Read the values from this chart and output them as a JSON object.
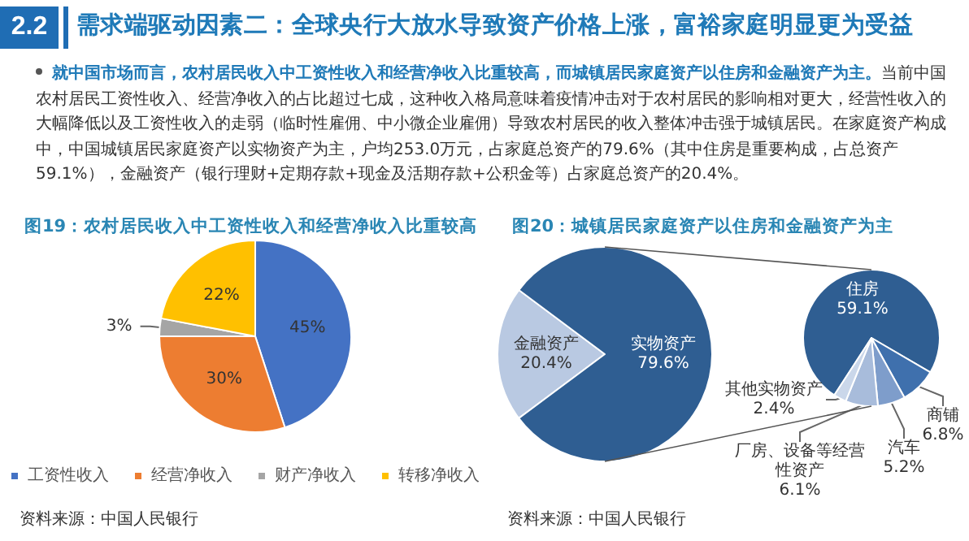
{
  "chart_data": [
    {
      "type": "other",
      "title": "需求端驱动因素二：全球央行大放水导致资产价格上涨，富裕家庭明显更为受益",
      "annotations": [
        "2.2",
        "就中国市场而言，农村居民收入中工资性收入和经营净收入比重较高，而城镇居民家庭资产以住房和金融资产为主。",
        "当前中国农村居民工资性收入、经营净收入的占比超过七成，这种收入格局意味着疫情冲击对于农村居民的影响相对更大，经营性收入的大幅降低以及工资性收入的走弱（临时性雇佣、中小微企业雇佣）导致农村居民的收入整体冲击强于城镇居民。在家庭资产构成中，中国城镇居民家庭资产以实物资产为主，户均253.0万元，占家庭总资产的79.6%（其中住房是重要构成，占总资产59.1%），金融资产（银行理财+定期存款+现金及活期存款+公积金等）占家庭总资产的20.4%。"
      ]
    },
    {
      "type": "pie",
      "title": "图19：农村居民收入中工资性收入和经营净收入比重较高",
      "categories": [
        "工资性收入",
        "经营净收入",
        "财产净收入",
        "转移净收入"
      ],
      "values": [
        45,
        30,
        3,
        22
      ],
      "colors": [
        "#4472c4",
        "#ed7d31",
        "#a5a5a5",
        "#ffc000"
      ],
      "value_labels": [
        "45%",
        "30%",
        "3%",
        "22%"
      ],
      "legend": "bottom",
      "annotations": [
        "资料来源：中国人民银行"
      ]
    },
    {
      "type": "pie",
      "title": "图20：城镇居民家庭资产以住房和金融资产为主",
      "categories": [
        "金融资产",
        "实物资产"
      ],
      "values": [
        20.4,
        79.6
      ],
      "colors": [
        "#b9c9e2",
        "#2f5e92"
      ],
      "value_labels": [
        "20.4%",
        "79.6%"
      ],
      "annotations": [
        "资料来源：中国人民银行"
      ]
    },
    {
      "type": "pie",
      "categories": [
        "住房",
        "商铺",
        "汽车",
        "厂房、设备等经营性资产",
        "其他实物资产"
      ],
      "values": [
        59.1,
        6.8,
        5.2,
        6.1,
        2.4
      ],
      "colors": [
        "#2f5e92",
        "#3f70ad",
        "#7e9dcb",
        "#a8bcdb",
        "#cad7ea"
      ],
      "value_labels": [
        "59.1%",
        "6.8%",
        "5.2%",
        "6.1%",
        "2.4%"
      ]
    }
  ]
}
